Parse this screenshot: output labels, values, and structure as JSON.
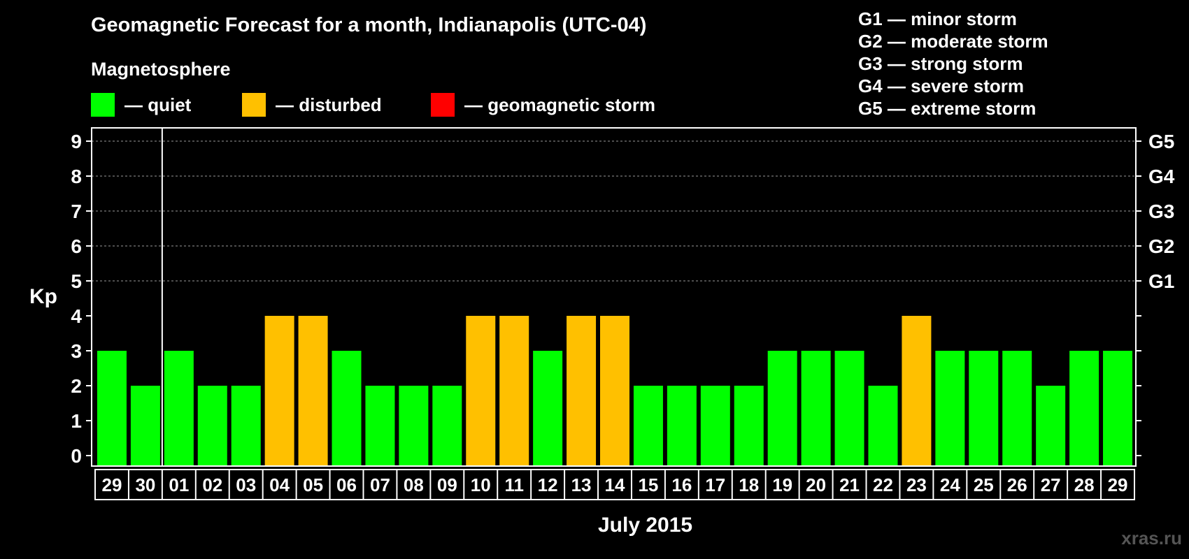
{
  "chart_data": {
    "type": "bar",
    "title": "Geomagnetic Forecast for a month, Indianapolis (UTC-04)",
    "subtitle": "Magnetosphere",
    "legend": [
      {
        "label": "— quiet",
        "color": "#00ff00"
      },
      {
        "label": "— disturbed",
        "color": "#ffc000"
      },
      {
        "label": "— geomagnetic storm",
        "color": "#ff0000"
      }
    ],
    "storm_levels": [
      "G1 — minor storm",
      "G2 — moderate storm",
      "G3 — strong storm",
      "G4 — severe storm",
      "G5 — extreme storm"
    ],
    "ylabel": "Kp",
    "xlabel": "July 2015",
    "ylim": [
      0,
      9
    ],
    "yticks": [
      "0",
      "1",
      "2",
      "3",
      "4",
      "5",
      "6",
      "7",
      "8",
      "9"
    ],
    "right_ticks": [
      {
        "kp": 5,
        "label": "G1"
      },
      {
        "kp": 6,
        "label": "G2"
      },
      {
        "kp": 7,
        "label": "G3"
      },
      {
        "kp": 8,
        "label": "G4"
      },
      {
        "kp": 9,
        "label": "G5"
      }
    ],
    "categories": [
      "29",
      "30",
      "01",
      "02",
      "03",
      "04",
      "05",
      "06",
      "07",
      "08",
      "09",
      "10",
      "11",
      "12",
      "13",
      "14",
      "15",
      "16",
      "17",
      "18",
      "19",
      "20",
      "21",
      "22",
      "23",
      "24",
      "25",
      "26",
      "27",
      "28",
      "29"
    ],
    "values": [
      3,
      2,
      3,
      2,
      2,
      4,
      4,
      3,
      2,
      2,
      2,
      4,
      4,
      3,
      4,
      4,
      2,
      2,
      2,
      2,
      3,
      3,
      3,
      2,
      4,
      3,
      3,
      3,
      2,
      3,
      3
    ],
    "colors": {
      "quiet": "#00ff00",
      "disturbed": "#ffc000",
      "storm": "#ff0000",
      "background": "#000000",
      "axis": "#ffffff",
      "grid": "#9a9a9a"
    },
    "month_divider_after_index": 1,
    "grid": true
  },
  "watermark": "xras.ru"
}
